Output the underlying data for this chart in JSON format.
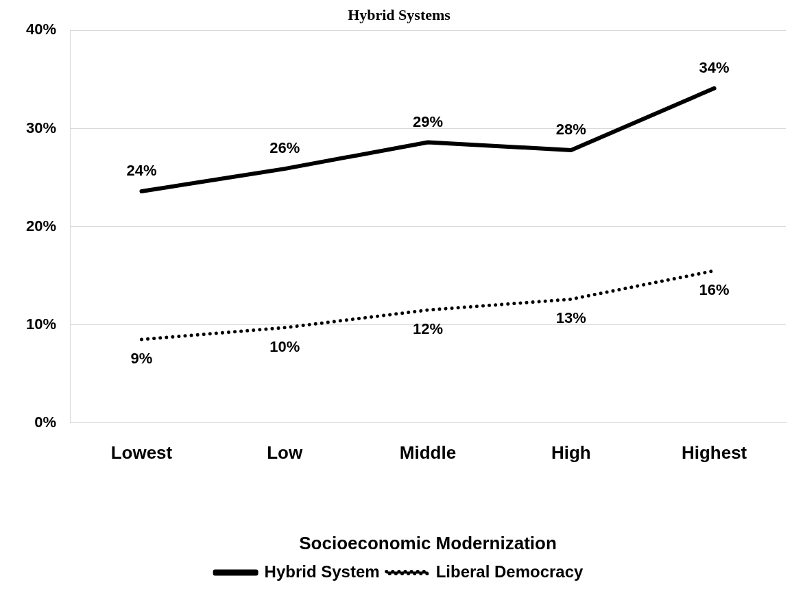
{
  "chart_data": {
    "type": "line",
    "title": "Hybrid Systems",
    "xlabel": "Socioeconomic Modernization",
    "categories": [
      "Lowest",
      "Low",
      "Middle",
      "High",
      "Highest"
    ],
    "series": [
      {
        "name": "Hybrid System",
        "color": "#000000",
        "line_style": "solid",
        "values": [
          23.6,
          25.9,
          28.6,
          27.8,
          34.1
        ],
        "value_labels": [
          "24%",
          "26%",
          "29%",
          "28%",
          "34%"
        ]
      },
      {
        "name": "Liberal Democracy",
        "color": "#000000",
        "line_style": "dotted",
        "values": [
          8.5,
          9.7,
          11.5,
          12.6,
          15.5
        ],
        "value_labels": [
          "9%",
          "10%",
          "12%",
          "13%",
          "16%"
        ]
      }
    ],
    "ylim": [
      0,
      40
    ],
    "yticks": [
      {
        "value": 0,
        "label": "0%"
      },
      {
        "value": 10,
        "label": "10%"
      },
      {
        "value": 20,
        "label": "20%"
      },
      {
        "value": 30,
        "label": "30%"
      },
      {
        "value": 40,
        "label": "40%"
      }
    ],
    "grid": "y",
    "legend": "bottom",
    "marker": "none"
  }
}
